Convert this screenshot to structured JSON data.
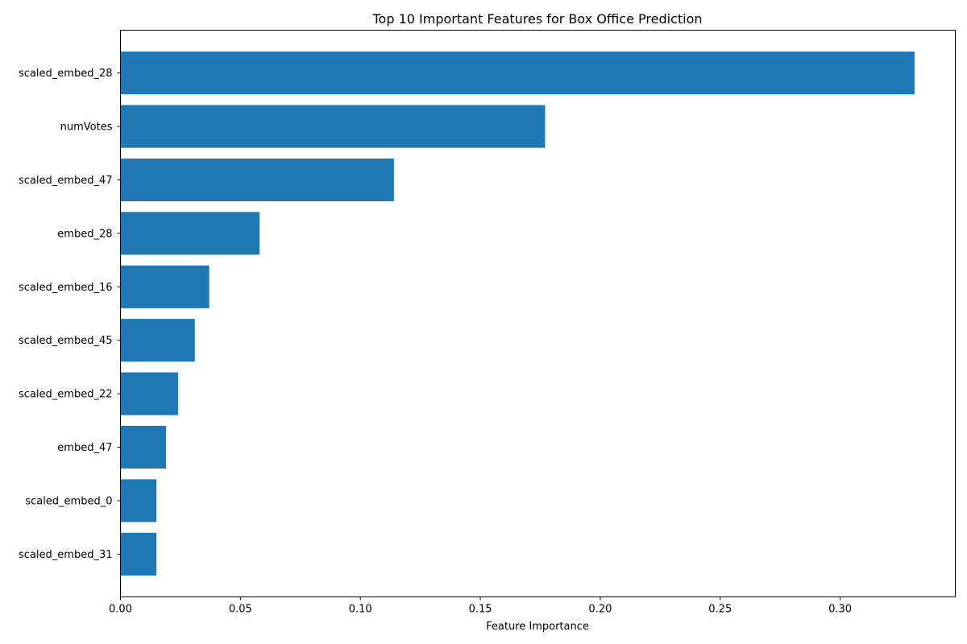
{
  "chart_data": {
    "type": "bar",
    "orientation": "horizontal",
    "title": "Top 10 Important Features for Box Office Prediction",
    "xlabel": "Feature Importance",
    "ylabel": "",
    "categories": [
      "scaled_embed_28",
      "numVotes",
      "scaled_embed_47",
      "embed_28",
      "scaled_embed_16",
      "scaled_embed_45",
      "scaled_embed_22",
      "embed_47",
      "scaled_embed_0",
      "scaled_embed_31"
    ],
    "values": [
      0.331,
      0.177,
      0.114,
      0.058,
      0.037,
      0.031,
      0.024,
      0.019,
      0.015,
      0.015
    ],
    "xlim": [
      0,
      0.348
    ],
    "xticks": [
      0,
      0.05,
      0.1,
      0.15,
      0.2,
      0.25,
      0.3
    ],
    "xtick_labels": [
      "0.00",
      "0.05",
      "0.10",
      "0.15",
      "0.20",
      "0.25",
      "0.30"
    ],
    "grid": false,
    "bar_color": "#1f77b4"
  }
}
